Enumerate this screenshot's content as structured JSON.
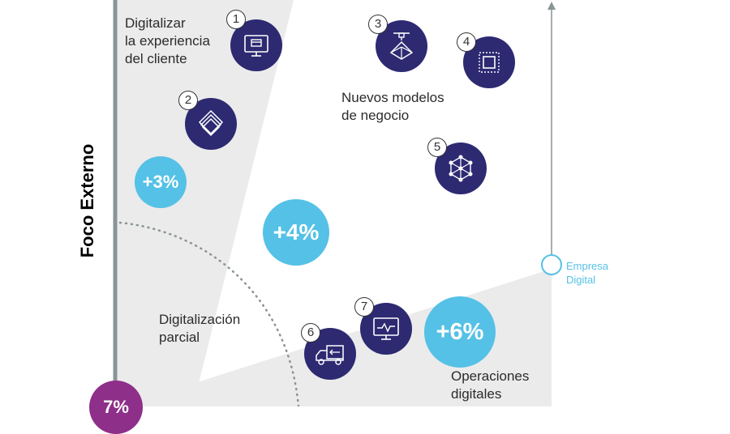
{
  "axis_label": "Foco Externo",
  "zones": {
    "customer": [
      "Digitalizar",
      "la experiencia",
      "del cliente"
    ],
    "business_models": [
      "Nuevos modelos",
      "de negocio"
    ],
    "partial": [
      "Digitalización",
      "parcial"
    ],
    "operations": [
      "Operaciones",
      "digitales"
    ]
  },
  "markers": [
    {
      "number": "1",
      "icon": "monitor-card-icon"
    },
    {
      "number": "2",
      "icon": "layers-icon"
    },
    {
      "number": "3",
      "icon": "3d-printer-icon"
    },
    {
      "number": "4",
      "icon": "frame-icon"
    },
    {
      "number": "5",
      "icon": "network-cube-icon"
    },
    {
      "number": "6",
      "icon": "delivery-truck-icon"
    },
    {
      "number": "7",
      "icon": "monitor-chart-icon"
    }
  ],
  "percentages": {
    "p3": "+3%",
    "p4": "+4%",
    "p6": "+6%",
    "purple": "7%"
  },
  "empresa_digital": [
    "Empresa",
    "Digital"
  ],
  "colors": {
    "navy": "#2d2a72",
    "light_blue": "#55c1e6",
    "purple": "#8e2f8a",
    "zone_gray": "#ebebeb",
    "axis_gray": "#8a9396"
  }
}
